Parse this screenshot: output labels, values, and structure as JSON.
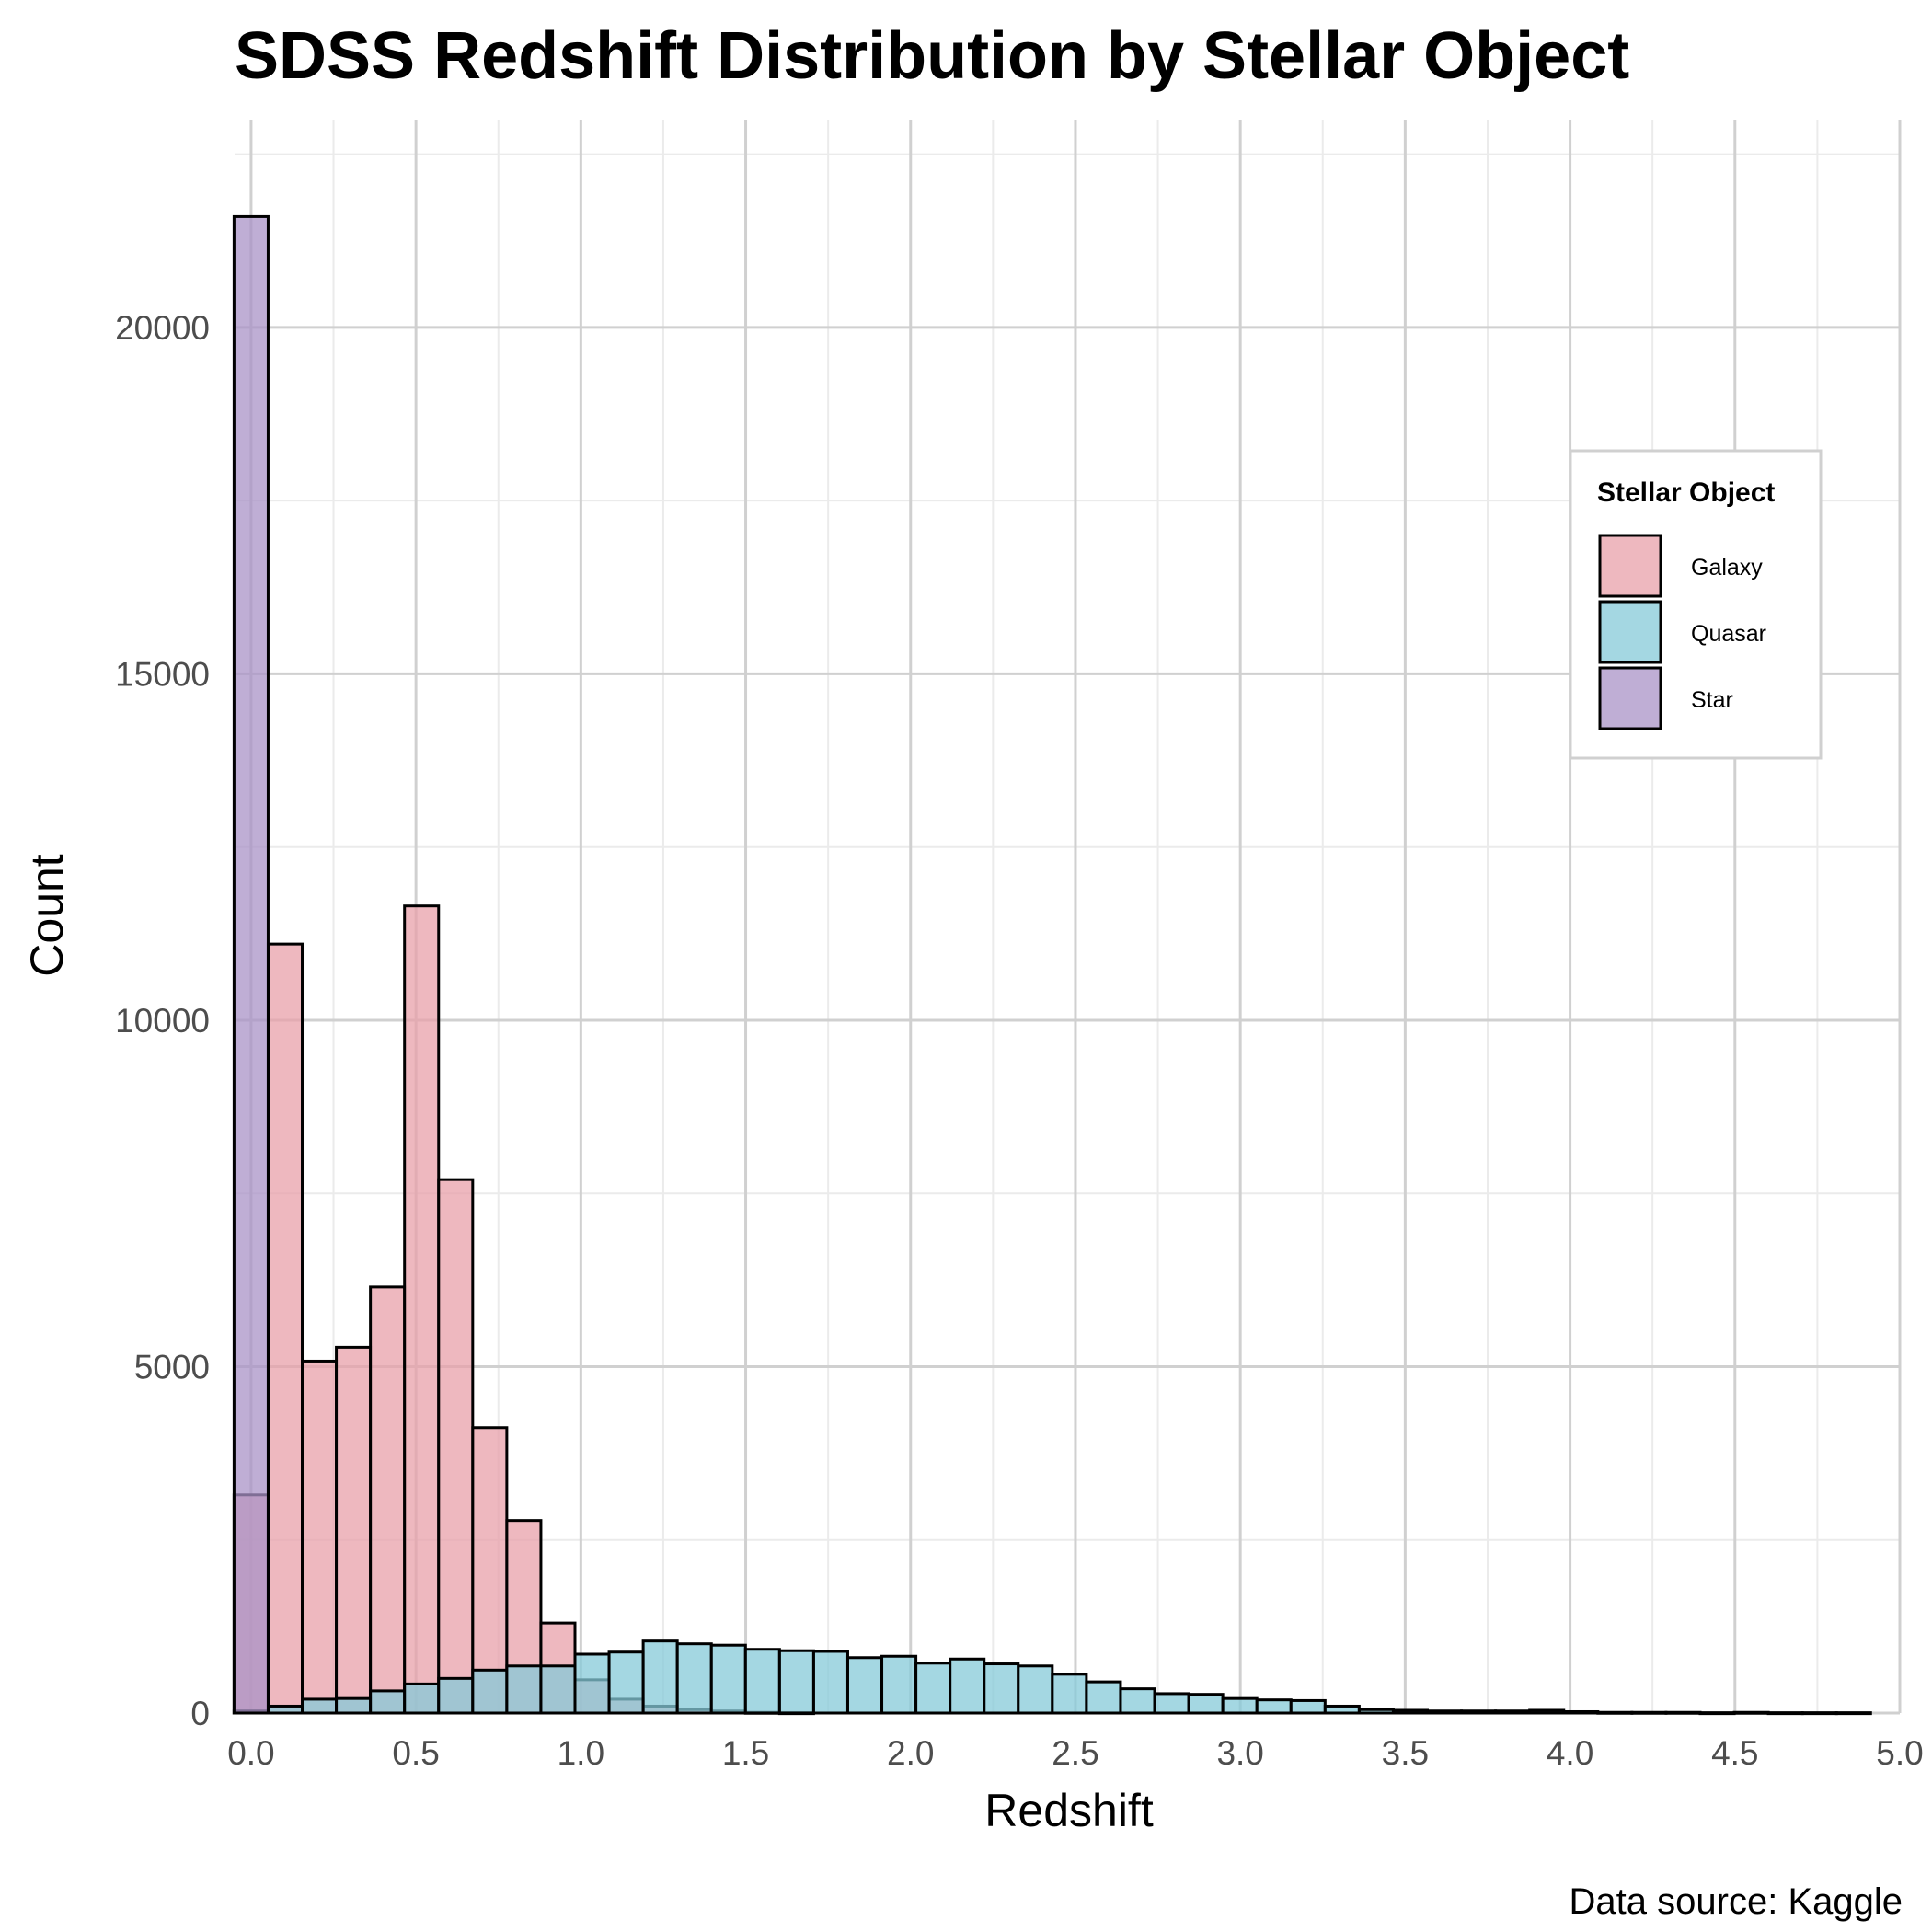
{
  "chart_data": {
    "type": "bar",
    "title": "SDSS Redshift Distribution by Stellar Object",
    "xlabel": "Redshift",
    "ylabel": "Count",
    "caption": "Data source: Kaggle",
    "xlim": [
      -0.05,
      5.0
    ],
    "ylim": [
      0,
      23000
    ],
    "x_ticks": [
      "0.0",
      "0.5",
      "1.0",
      "1.5",
      "2.0",
      "2.5",
      "3.0",
      "3.5",
      "4.0",
      "4.5",
      "5.0"
    ],
    "y_ticks": [
      "0",
      "5000",
      "10000",
      "15000",
      "20000"
    ],
    "grid": true,
    "bin_width": 0.1034,
    "bin_starts": [
      -0.0517,
      0.0517,
      0.1551,
      0.2585,
      0.3619,
      0.4653,
      0.5687,
      0.6721,
      0.7755,
      0.8789,
      0.9823,
      1.0857,
      1.1891,
      1.2925,
      1.3959,
      1.4993,
      1.6027,
      1.7061,
      1.8095,
      1.9129,
      2.0163,
      2.1197,
      2.2231,
      2.3265,
      2.4299,
      2.5333,
      2.6367,
      2.7401,
      2.8435,
      2.9469,
      3.0503,
      3.1537,
      3.2571,
      3.3605,
      3.4639,
      3.5673,
      3.6707,
      3.7741,
      3.8775,
      3.9809,
      4.0843,
      4.1877,
      4.2911,
      4.3945,
      4.4979,
      4.6013,
      4.7047,
      4.8081
    ],
    "series": [
      {
        "name": "Galaxy",
        "color": "#e8a0aa",
        "values": [
          3150,
          11100,
          5080,
          5280,
          6150,
          11650,
          7700,
          4120,
          2780,
          1300,
          480,
          200,
          100,
          50,
          30,
          10,
          5,
          0,
          0,
          0,
          0,
          0,
          0,
          0,
          0,
          0,
          0,
          0,
          0,
          0,
          0,
          0,
          0,
          0,
          0,
          0,
          0,
          0,
          0,
          0,
          0,
          0,
          0,
          0,
          0,
          0,
          0,
          0
        ]
      },
      {
        "name": "Quasar",
        "color": "#86cad8",
        "values": [
          30,
          100,
          200,
          210,
          320,
          420,
          500,
          620,
          680,
          680,
          850,
          880,
          1040,
          1000,
          980,
          920,
          900,
          890,
          800,
          820,
          720,
          780,
          710,
          680,
          560,
          450,
          350,
          280,
          270,
          210,
          190,
          180,
          100,
          50,
          40,
          30,
          30,
          30,
          40,
          20,
          10,
          10,
          10,
          5,
          10,
          5,
          5,
          5
        ]
      },
      {
        "name": "Star",
        "color": "#a993c7",
        "values": [
          21600,
          0,
          0,
          0,
          0,
          0,
          0,
          0,
          0,
          0,
          0,
          0,
          0,
          0,
          0,
          0,
          0,
          0,
          0,
          0,
          0,
          0,
          0,
          0,
          0,
          0,
          0,
          0,
          0,
          0,
          0,
          0,
          0,
          0,
          0,
          0,
          0,
          0,
          0,
          0,
          0,
          0,
          0,
          0,
          0,
          0,
          0,
          0
        ]
      }
    ],
    "legend": {
      "title": "Stellar Object",
      "position": "top-right",
      "entries": [
        "Galaxy",
        "Quasar",
        "Star"
      ]
    }
  }
}
